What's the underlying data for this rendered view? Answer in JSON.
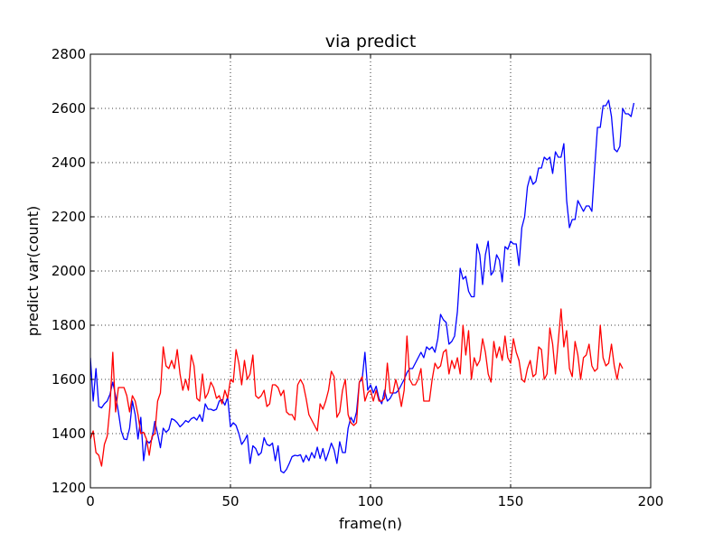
{
  "chart_data": {
    "type": "line",
    "title": "via predict",
    "xlabel": "frame(n)",
    "ylabel": "predict var(count)",
    "xlim": [
      0,
      200
    ],
    "ylim": [
      1200,
      2800
    ],
    "xticks": [
      0,
      50,
      100,
      150,
      200
    ],
    "yticks": [
      1200,
      1400,
      1600,
      1800,
      2000,
      2200,
      2400,
      2600,
      2800
    ],
    "xtick_labels": [
      "0",
      "50",
      "100",
      "150",
      "200"
    ],
    "ytick_labels": [
      "1200",
      "1400",
      "1600",
      "1800",
      "2000",
      "2200",
      "2400",
      "2600",
      "2800"
    ],
    "grid": true,
    "legend": "none",
    "series": [
      {
        "color": "#0000ff",
        "x_start": 0,
        "x_step": 1,
        "values": [
          1680,
          1520,
          1640,
          1500,
          1495,
          1510,
          1520,
          1545,
          1590,
          1540,
          1480,
          1410,
          1380,
          1378,
          1420,
          1520,
          1470,
          1380,
          1460,
          1300,
          1375,
          1365,
          1380,
          1445,
          1400,
          1348,
          1420,
          1405,
          1415,
          1455,
          1450,
          1440,
          1425,
          1435,
          1448,
          1442,
          1455,
          1460,
          1450,
          1470,
          1445,
          1510,
          1490,
          1490,
          1485,
          1490,
          1520,
          1525,
          1505,
          1535,
          1425,
          1440,
          1430,
          1400,
          1360,
          1375,
          1395,
          1290,
          1355,
          1345,
          1320,
          1330,
          1385,
          1360,
          1355,
          1365,
          1300,
          1355,
          1262,
          1255,
          1268,
          1290,
          1315,
          1320,
          1318,
          1322,
          1295,
          1320,
          1300,
          1330,
          1310,
          1350,
          1308,
          1345,
          1300,
          1330,
          1365,
          1340,
          1290,
          1370,
          1330,
          1330,
          1420,
          1460,
          1440,
          1480,
          1590,
          1600,
          1700,
          1560,
          1580,
          1550,
          1575,
          1530,
          1510,
          1560,
          1520,
          1530,
          1550,
          1550,
          1560,
          1580,
          1600,
          1625,
          1640,
          1640,
          1660,
          1680,
          1700,
          1680,
          1720,
          1710,
          1720,
          1700,
          1750,
          1840,
          1820,
          1810,
          1730,
          1740,
          1760,
          1850,
          2010,
          1970,
          1980,
          1925,
          1905,
          1905,
          2100,
          2060,
          1950,
          2060,
          2110,
          1985,
          2000,
          2060,
          2040,
          1960,
          2090,
          2080,
          2110,
          2100,
          2100,
          2020,
          2160,
          2200,
          2310,
          2350,
          2320,
          2330,
          2380,
          2380,
          2420,
          2410,
          2420,
          2360,
          2440,
          2420,
          2420,
          2470,
          2260,
          2160,
          2190,
          2190,
          2260,
          2240,
          2220,
          2240,
          2240,
          2220,
          2380,
          2530,
          2530,
          2610,
          2610,
          2630,
          2570,
          2450,
          2440,
          2460,
          2600,
          2580,
          2580,
          2570,
          2620
        ]
      },
      {
        "color": "#ff0000",
        "x_start": 0,
        "x_step": 1,
        "values": [
          1380,
          1410,
          1330,
          1320,
          1280,
          1360,
          1390,
          1500,
          1700,
          1480,
          1570,
          1570,
          1570,
          1540,
          1480,
          1540,
          1520,
          1470,
          1400,
          1405,
          1380,
          1320,
          1390,
          1400,
          1520,
          1550,
          1720,
          1650,
          1640,
          1670,
          1640,
          1710,
          1620,
          1560,
          1600,
          1560,
          1690,
          1650,
          1530,
          1520,
          1620,
          1530,
          1550,
          1590,
          1570,
          1530,
          1540,
          1510,
          1560,
          1530,
          1600,
          1590,
          1710,
          1660,
          1580,
          1670,
          1600,
          1620,
          1690,
          1540,
          1530,
          1540,
          1560,
          1500,
          1510,
          1580,
          1580,
          1570,
          1540,
          1560,
          1480,
          1470,
          1470,
          1450,
          1580,
          1600,
          1580,
          1530,
          1470,
          1450,
          1430,
          1410,
          1510,
          1490,
          1520,
          1560,
          1630,
          1610,
          1460,
          1480,
          1560,
          1600,
          1470,
          1440,
          1430,
          1440,
          1590,
          1610,
          1520,
          1550,
          1560,
          1520,
          1560,
          1520,
          1520,
          1530,
          1660,
          1550,
          1550,
          1600,
          1560,
          1500,
          1560,
          1760,
          1600,
          1580,
          1580,
          1600,
          1640,
          1520,
          1520,
          1520,
          1600,
          1660,
          1640,
          1650,
          1700,
          1710,
          1620,
          1670,
          1640,
          1680,
          1620,
          1800,
          1690,
          1780,
          1600,
          1680,
          1650,
          1670,
          1750,
          1700,
          1620,
          1590,
          1740,
          1680,
          1720,
          1670,
          1760,
          1680,
          1660,
          1750,
          1700,
          1670,
          1600,
          1590,
          1640,
          1670,
          1610,
          1620,
          1720,
          1710,
          1600,
          1620,
          1790,
          1730,
          1620,
          1740,
          1860,
          1720,
          1780,
          1640,
          1610,
          1740,
          1690,
          1600,
          1680,
          1690,
          1730,
          1650,
          1630,
          1640,
          1800,
          1680,
          1650,
          1660,
          1730,
          1650,
          1600,
          1660,
          1640
        ]
      }
    ]
  }
}
